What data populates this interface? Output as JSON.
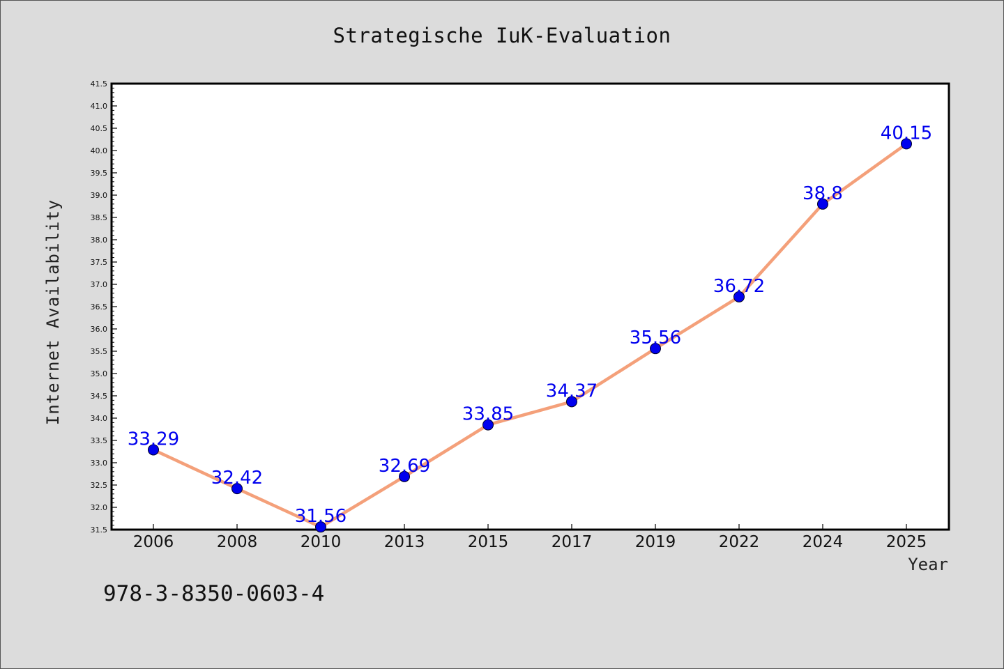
{
  "chart_data": {
    "type": "line",
    "title": "Strategische IuK-Evaluation",
    "xlabel": "Year",
    "ylabel": "Internet Availability",
    "categories": [
      "2006",
      "2008",
      "2010",
      "2013",
      "2015",
      "2017",
      "2019",
      "2022",
      "2024",
      "2025"
    ],
    "series": [
      {
        "values": [
          33.29,
          32.42,
          31.56,
          32.69,
          33.85,
          34.37,
          35.56,
          36.72,
          38.8,
          40.15
        ],
        "labels": [
          "33.29",
          "32.42",
          "31.56",
          "32.69",
          "33.85",
          "34.37",
          "35.56",
          "36.72",
          "38.8",
          "40.15"
        ],
        "line_color": "#f4a07a",
        "marker_color": "#0000ee",
        "label_color": "#0000ee"
      }
    ],
    "ylim": [
      31.5,
      41.5
    ],
    "yticks": [
      "31.5",
      "32.0",
      "32.5",
      "33.0",
      "33.5",
      "34.0",
      "34.5",
      "35.0",
      "35.5",
      "36.0",
      "36.5",
      "37.0",
      "37.5",
      "38.0",
      "38.5",
      "39.0",
      "39.5",
      "40.0",
      "40.5",
      "41.0",
      "41.5"
    ],
    "grid": false,
    "legend": "none"
  },
  "footer": {
    "isbn": "978-3-8350-0603-4"
  },
  "colors": {
    "background": "#dcdcdc",
    "plot_background": "#ffffff"
  }
}
